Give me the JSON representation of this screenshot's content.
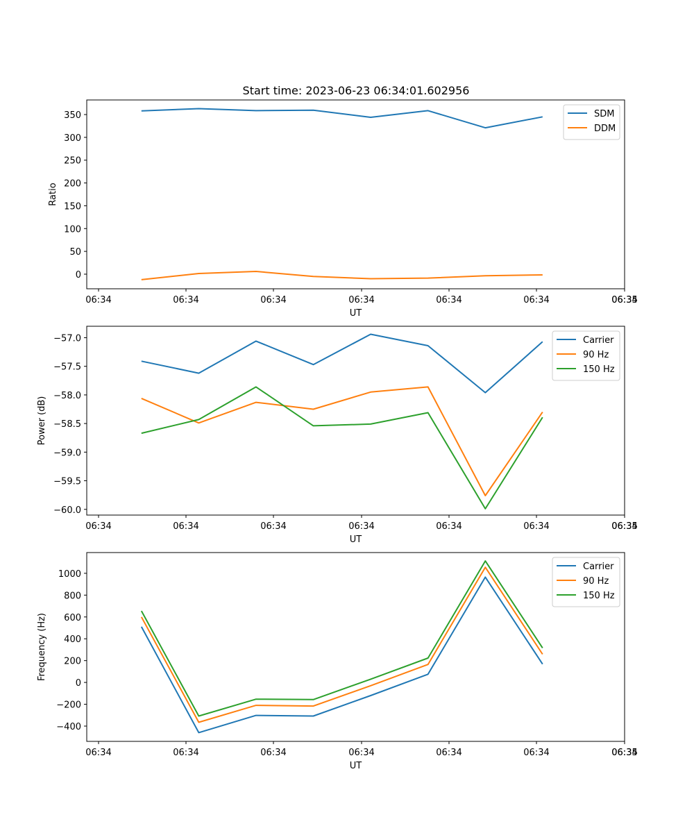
{
  "figure": {
    "title": "Start time: 2023-06-23 06:34:01.602956"
  },
  "chart_data": [
    {
      "type": "line",
      "title": "Start time: 2023-06-23 06:34:01.602956",
      "xlabel": "UT",
      "ylabel": "Ratio",
      "x_tick_labels": [
        "06:34",
        "06:34",
        "06:34",
        "06:34",
        "06:34",
        "06:34",
        "06:34",
        "06:35"
      ],
      "y_ticks": [
        0,
        50,
        100,
        150,
        200,
        250,
        300,
        350
      ],
      "ylim": [
        -32,
        382
      ],
      "x": [
        0.47,
        1.12,
        1.77,
        2.42,
        3.07,
        3.72,
        4.37,
        5.02
      ],
      "xlim": [
        -0.15,
        5.95
      ],
      "legend": "top-right",
      "grid": false,
      "series": [
        {
          "name": "SDM",
          "color": "#1f77b4",
          "values": [
            358,
            363,
            358.5,
            359.5,
            344,
            358.5,
            321,
            345
          ]
        },
        {
          "name": "DDM",
          "color": "#ff7f0e",
          "values": [
            -12,
            1.5,
            6,
            -5,
            -10,
            -8.5,
            -3.5,
            -1.5
          ]
        }
      ]
    },
    {
      "type": "line",
      "xlabel": "UT",
      "ylabel": "Power (dB)",
      "x_tick_labels": [
        "06:34",
        "06:34",
        "06:34",
        "06:34",
        "06:34",
        "06:34",
        "06:34",
        "06:35"
      ],
      "y_ticks": [
        -57.0,
        -57.5,
        -58.0,
        -58.5,
        -59.0,
        -59.5,
        -60.0
      ],
      "y_tick_labels": [
        "−57.0",
        "−57.5",
        "−58.0",
        "−58.5",
        "−59.0",
        "−59.5",
        "−60.0"
      ],
      "ylim": [
        -60.1,
        -56.8
      ],
      "x": [
        0.47,
        1.12,
        1.77,
        2.42,
        3.07,
        3.72,
        4.37,
        5.02
      ],
      "xlim": [
        -0.15,
        5.95
      ],
      "legend": "top-right",
      "grid": false,
      "series": [
        {
          "name": "Carrier",
          "color": "#1f77b4",
          "values": [
            -57.41,
            -57.62,
            -57.06,
            -57.47,
            -56.94,
            -57.14,
            -57.96,
            -57.07
          ]
        },
        {
          "name": "90 Hz",
          "color": "#ff7f0e",
          "values": [
            -58.06,
            -58.49,
            -58.13,
            -58.25,
            -57.95,
            -57.86,
            -59.76,
            -58.3
          ]
        },
        {
          "name": "150 Hz",
          "color": "#2ca02c",
          "values": [
            -58.67,
            -58.43,
            -57.86,
            -58.54,
            -58.51,
            -58.31,
            -59.99,
            -58.39
          ]
        }
      ]
    },
    {
      "type": "line",
      "xlabel": "UT",
      "ylabel": "Frequency (Hz)",
      "x_tick_labels": [
        "06:34",
        "06:34",
        "06:34",
        "06:34",
        "06:34",
        "06:34",
        "06:34",
        "06:35"
      ],
      "y_ticks": [
        -400,
        -200,
        0,
        200,
        400,
        600,
        800,
        1000
      ],
      "y_tick_labels": [
        "−400",
        "−200",
        "0",
        "200",
        "400",
        "600",
        "800",
        "1000"
      ],
      "ylim": [
        -540,
        1190
      ],
      "x": [
        0.47,
        1.12,
        1.77,
        2.42,
        3.07,
        3.72,
        4.37,
        5.02
      ],
      "xlim": [
        -0.15,
        5.95
      ],
      "legend": "top-right",
      "grid": false,
      "series": [
        {
          "name": "Carrier",
          "color": "#1f77b4",
          "values": [
            510,
            -460,
            -302,
            -308,
            -120,
            75,
            965,
            168
          ]
        },
        {
          "name": "90 Hz",
          "color": "#ff7f0e",
          "values": [
            600,
            -365,
            -210,
            -216,
            -30,
            165,
            1055,
            258
          ]
        },
        {
          "name": "150 Hz",
          "color": "#2ca02c",
          "values": [
            655,
            -308,
            -153,
            -157,
            30,
            223,
            1113,
            316
          ]
        }
      ]
    }
  ]
}
